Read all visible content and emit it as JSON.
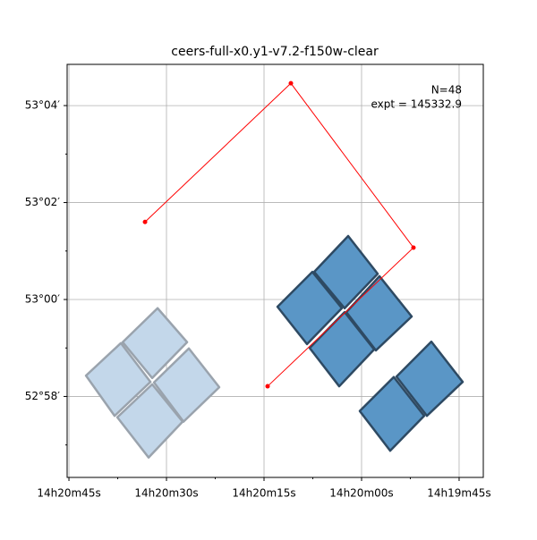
{
  "chart_data": {
    "type": "polygon",
    "title": "ceers-full-x0.y1-v7.2-f150w-clear",
    "annotations": [
      "N=48",
      "expt = 145332.9"
    ],
    "xlim": [
      45.28,
      -18.72
    ],
    "ylim": [
      -3.67,
      4.85
    ],
    "xticks": [
      {
        "value": 45,
        "label": "14h20m45s"
      },
      {
        "value": 30,
        "label": "14h20m30s"
      },
      {
        "value": 15,
        "label": "14h20m15s"
      },
      {
        "value": 0,
        "label": "14h20m00s"
      },
      {
        "value": -15,
        "label": "14h19m45s"
      }
    ],
    "yticks": [
      {
        "value": 4,
        "label": "53°04′"
      },
      {
        "value": 2,
        "label": "53°02′"
      },
      {
        "value": 0,
        "label": "53°00′"
      },
      {
        "value": -2,
        "label": "52°58′"
      }
    ],
    "xminor": [
      37.5,
      22.5,
      7.5,
      -7.5
    ],
    "yminor": [
      3,
      1,
      -1,
      -3
    ],
    "grid": true,
    "series": [
      {
        "color": "#c3d7ea",
        "edge": "#9aa3ad",
        "polygons": [
          {
            "x": [
              36.74,
              31.37,
              26.83,
              32.2
            ],
            "y": [
              -0.88,
              -0.18,
              -0.88,
              -1.62
            ]
          },
          {
            "x": [
              42.38,
              37.02,
              32.47,
              37.98
            ],
            "y": [
              -1.57,
              -0.9,
              -1.7,
              -2.4
            ]
          },
          {
            "x": [
              31.92,
              26.56,
              21.88,
              27.38
            ],
            "y": [
              -1.71,
              -1.01,
              -1.81,
              -2.52
            ]
          },
          {
            "x": [
              37.56,
              32.2,
              27.52,
              32.75
            ],
            "y": [
              -2.43,
              -1.75,
              -2.52,
              -3.26
            ]
          }
        ]
      },
      {
        "color": "#5a96c6",
        "edge": "#2e4a63",
        "polygons": [
          {
            "x": [
              12.93,
              7.57,
              3.03,
              8.39
            ],
            "y": [
              -0.15,
              0.57,
              -0.18,
              -0.92
            ]
          },
          {
            "x": [
              7.29,
              2.06,
              -2.48,
              2.61
            ],
            "y": [
              0.57,
              1.31,
              0.53,
              -0.18
            ]
          },
          {
            "x": [
              7.98,
              2.61,
              -1.93,
              3.44
            ],
            "y": [
              -1.0,
              -0.26,
              -1.03,
              -1.79
            ]
          },
          {
            "x": [
              2.34,
              -2.75,
              -7.71,
              -2.2
            ],
            "y": [
              -0.26,
              0.48,
              -0.35,
              -1.05
            ]
          },
          {
            "x": [
              0.28,
              -4.95,
              -9.63,
              -4.4
            ],
            "y": [
              -2.3,
              -1.6,
              -2.4,
              -3.12
            ]
          },
          {
            "x": [
              -5.37,
              -10.73,
              -15.55,
              -10.05
            ],
            "y": [
              -1.59,
              -0.87,
              -1.7,
              -2.4
            ]
          }
        ]
      }
    ],
    "track": {
      "color": "#ff0000",
      "x": [
        33.3,
        10.87,
        -7.98,
        14.45
      ],
      "y": [
        1.6,
        4.46,
        1.07,
        -1.79
      ]
    }
  }
}
